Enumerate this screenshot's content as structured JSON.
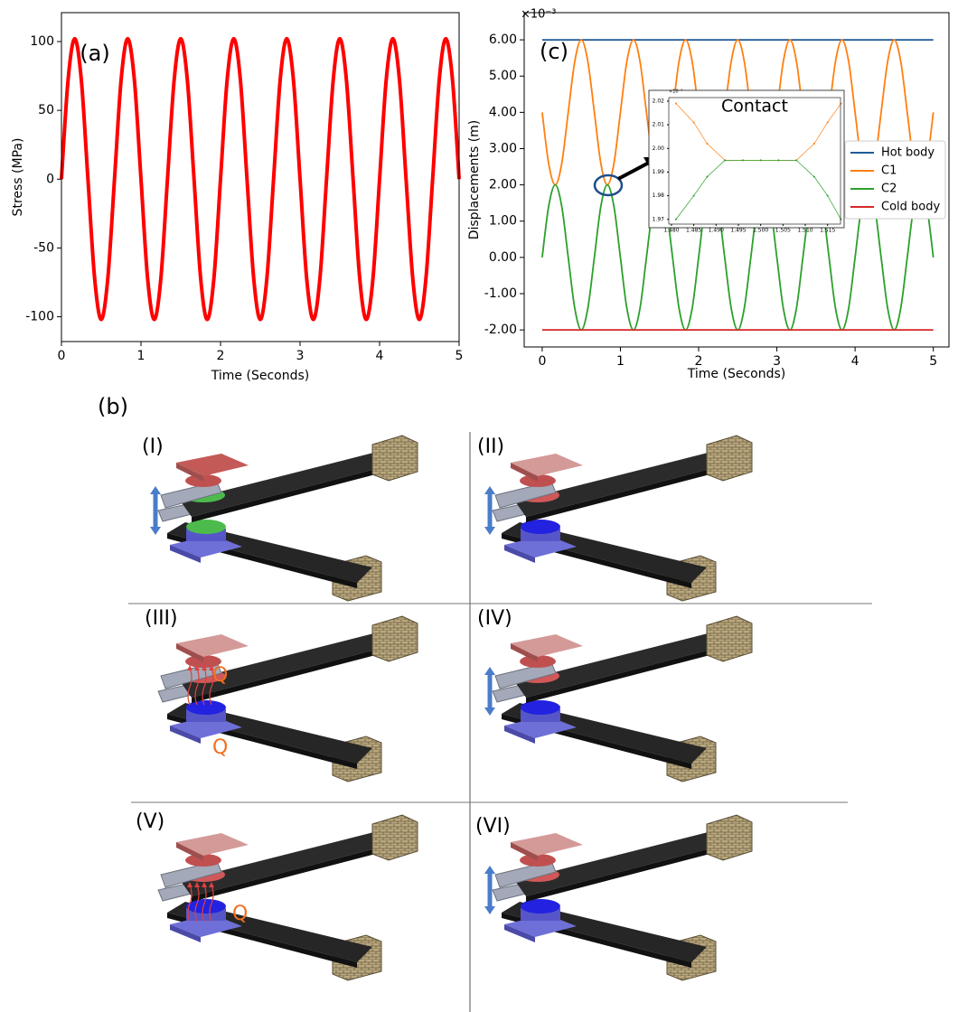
{
  "chart_data": [
    {
      "type": "line",
      "panel_label": "(a)",
      "x_label": "Time (Seconds)",
      "y_label": "Stress (MPa)",
      "color": "#ff0000",
      "x": [
        0,
        0.083,
        0.167,
        0.25,
        0.333,
        0.417,
        0.5,
        0.583,
        0.667,
        0.75,
        0.833,
        0.917,
        1,
        1.083,
        1.167,
        1.25,
        1.333,
        1.417,
        1.5,
        1.583,
        1.667,
        1.75,
        1.833,
        1.917,
        2,
        2.083,
        2.167,
        2.25,
        2.333,
        2.417,
        2.5,
        2.583,
        2.667,
        2.75,
        2.833,
        2.917,
        3,
        3.083,
        3.167,
        3.25,
        3.333,
        3.417,
        3.5,
        3.583,
        3.667,
        3.75,
        3.833,
        3.917,
        4,
        4.083,
        4.167,
        4.25,
        4.333,
        4.417,
        4.5,
        4.583,
        4.667,
        4.75,
        4.833,
        4.917,
        5
      ],
      "values": [
        0,
        72,
        102,
        72,
        0,
        -72,
        -102,
        -72,
        0,
        72,
        102,
        72,
        0,
        -72,
        -102,
        -72,
        0,
        72,
        102,
        72,
        0,
        -72,
        -102,
        -72,
        0,
        72,
        102,
        72,
        0,
        -72,
        -102,
        -72,
        0,
        72,
        102,
        72,
        0,
        -72,
        -102,
        -72,
        0,
        72,
        102,
        72,
        0,
        -72,
        -102,
        -72,
        0,
        72,
        102,
        72,
        0,
        -72,
        -102,
        -72,
        0,
        72,
        102,
        72,
        0
      ],
      "xlim": [
        0,
        5
      ],
      "ylim": [
        -118,
        121
      ],
      "xticks": [
        0,
        1,
        2,
        3,
        4,
        5
      ],
      "yticks": [
        -100,
        -50,
        0,
        50,
        100
      ]
    },
    {
      "type": "line",
      "panel_label": "(c)",
      "x_label": "Time (Seconds)",
      "y_label": "Displacements (m)",
      "scale_label": "×10⁻³",
      "legend": "center right",
      "x": [
        0,
        0.083,
        0.167,
        0.25,
        0.333,
        0.417,
        0.5,
        0.583,
        0.667,
        0.75,
        0.833,
        0.917,
        1,
        1.083,
        1.167,
        1.25,
        1.333,
        1.417,
        1.5,
        1.583,
        1.667,
        1.75,
        1.833,
        1.917,
        2,
        2.083,
        2.167,
        2.25,
        2.333,
        2.417,
        2.5,
        2.583,
        2.667,
        2.75,
        2.833,
        2.917,
        3,
        3.083,
        3.167,
        3.25,
        3.333,
        3.417,
        3.5,
        3.583,
        3.667,
        3.75,
        3.833,
        3.917,
        4,
        4.083,
        4.167,
        4.25,
        4.333,
        4.417,
        4.5,
        4.583,
        4.667,
        4.75,
        4.833,
        4.917,
        5
      ],
      "series": [
        {
          "name": "Hot body",
          "color": "#1f5b99",
          "x": [
            0,
            5
          ],
          "values": [
            6,
            6
          ]
        },
        {
          "name": "C1",
          "color": "#ff7f0e",
          "values": [
            4,
            2.59,
            2,
            2.59,
            4,
            5.41,
            6,
            5.41,
            4,
            2.59,
            2,
            2.59,
            4,
            5.41,
            6,
            5.41,
            4,
            2.59,
            2,
            2.59,
            4,
            5.41,
            6,
            5.41,
            4,
            2.59,
            2,
            2.59,
            4,
            5.41,
            6,
            5.41,
            4,
            2.59,
            2,
            2.59,
            4,
            5.41,
            6,
            5.41,
            4,
            2.59,
            2,
            2.59,
            4,
            5.41,
            6,
            5.41,
            4,
            2.59,
            2,
            2.59,
            4,
            5.41,
            6,
            5.41,
            4,
            2.59,
            2,
            2.59,
            4
          ]
        },
        {
          "name": "C2",
          "color": "#2ca02c",
          "values": [
            0,
            1.41,
            2,
            1.41,
            0,
            -1.41,
            -2,
            -1.41,
            0,
            1.41,
            2,
            1.41,
            0,
            -1.41,
            -2,
            -1.41,
            0,
            1.41,
            2,
            1.41,
            0,
            -1.41,
            -2,
            -1.41,
            0,
            1.41,
            2,
            1.41,
            0,
            -1.41,
            -2,
            -1.41,
            0,
            1.41,
            2,
            1.41,
            0,
            -1.41,
            -2,
            -1.41,
            0,
            1.41,
            2,
            1.41,
            0,
            -1.41,
            -2,
            -1.41,
            0,
            1.41,
            2,
            1.41,
            0,
            -1.41,
            -2,
            -1.41,
            0,
            1.41,
            2,
            1.41,
            0
          ]
        },
        {
          "name": "Cold body",
          "color": "#d62728",
          "x": [
            0,
            5
          ],
          "values": [
            -2,
            -2
          ]
        }
      ],
      "xlim": [
        -0.23,
        5.2
      ],
      "ylim": [
        -2.47,
        6.75
      ],
      "xticks": [
        0,
        1,
        2,
        3,
        4,
        5
      ],
      "yticks": [
        {
          "value": -2,
          "label": "-2.00"
        },
        {
          "value": -1,
          "label": "-1.00"
        },
        {
          "value": 0,
          "label": "0.00"
        },
        {
          "value": 1,
          "label": "1.00"
        },
        {
          "value": 2,
          "label": "2.00"
        },
        {
          "value": 3,
          "label": "3.00"
        },
        {
          "value": 4,
          "label": "4.00"
        },
        {
          "value": 5,
          "label": "5.00"
        },
        {
          "value": 6,
          "label": "6.00"
        }
      ]
    },
    {
      "type": "line",
      "title": "Contact",
      "scale_label": "×10⁻³",
      "markers": true,
      "x": [
        1.481,
        1.485,
        1.488,
        1.492,
        1.496,
        1.5,
        1.504,
        1.508,
        1.512,
        1.515,
        1.518
      ],
      "series": [
        {
          "color": "#ff7f0e",
          "values": [
            2.019,
            2.011,
            2.002,
            1.995,
            1.995,
            1.995,
            1.995,
            1.995,
            2.002,
            2.011,
            2.019
          ]
        },
        {
          "color": "#2ca02c",
          "values": [
            1.97,
            1.98,
            1.988,
            1.995,
            1.995,
            1.995,
            1.995,
            1.995,
            1.988,
            1.98,
            1.97
          ]
        }
      ],
      "xlim": [
        1.4794,
        1.5179
      ],
      "ylim": [
        1.968,
        2.0215
      ],
      "xticks": [
        {
          "value": 1.48,
          "label": "1.480"
        },
        1.485,
        {
          "value": 1.49,
          "label": "1.490"
        },
        1.495,
        {
          "value": 1.5,
          "label": "1.500"
        },
        1.505,
        {
          "value": 1.51,
          "label": "1.510"
        },
        1.515
      ],
      "yticks": [
        1.97,
        1.98,
        1.99,
        {
          "value": 2,
          "label": "2.00"
        },
        2.01,
        2.02
      ]
    }
  ],
  "diagram": {
    "label": "(b)",
    "panels": [
      {
        "label": "(I)"
      },
      {
        "label": "(II)"
      },
      {
        "label": "(III)",
        "annotations": [
          "Q",
          "Q"
        ]
      },
      {
        "label": "(IV)"
      },
      {
        "label": "(V)",
        "annotations": [
          "Q"
        ]
      },
      {
        "label": "(VI)"
      }
    ]
  }
}
